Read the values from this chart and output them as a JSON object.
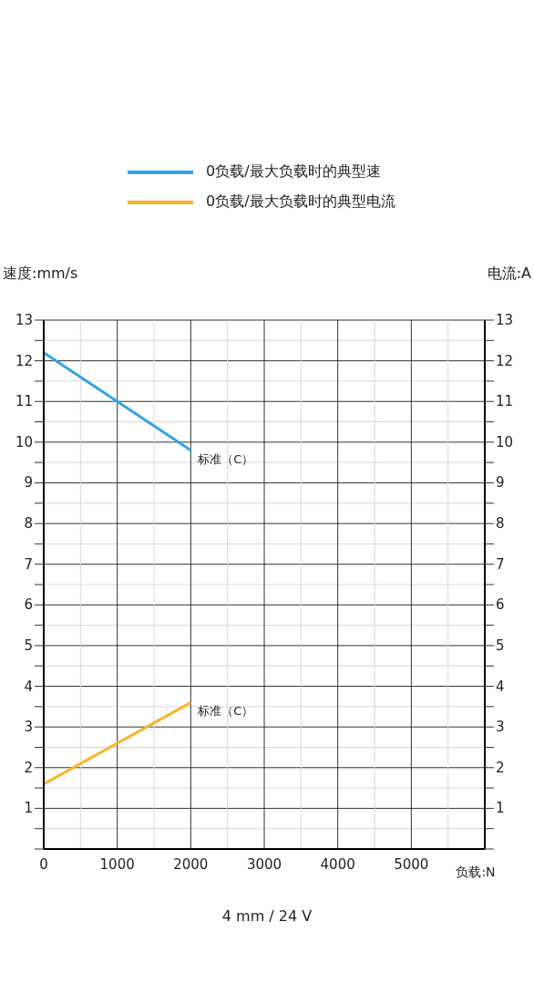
{
  "chart_data": {
    "type": "line",
    "subtitle": "4 mm / 24 V",
    "xlabel": "负载:N",
    "ylabel": "速度:mm/s",
    "y2label": "电流:A",
    "x": [
      0,
      2000
    ],
    "series": [
      {
        "name": "0负载/最大负载时的典型速",
        "color": "#2fa6de",
        "values": [
          12.2,
          9.8
        ]
      },
      {
        "name": "0负载/最大负载时的典型电流",
        "color": "#f8b42c",
        "values": [
          1.6,
          3.6
        ],
        "axis": "y2"
      }
    ],
    "annotations": [
      {
        "text": "标准（C）",
        "x": 2000,
        "y": 9.8
      },
      {
        "text": "标准（C）",
        "x": 2000,
        "y": 3.6
      }
    ],
    "xlim": [
      0,
      6000
    ],
    "xticks": [
      0,
      {
        "value": 500,
        "label": null
      },
      1000,
      {
        "value": 1500,
        "label": null
      },
      2000,
      {
        "value": 2500,
        "label": null
      },
      3000,
      {
        "value": 3500,
        "label": null
      },
      4000,
      {
        "value": 4500,
        "label": null
      },
      5000,
      {
        "value": 5500,
        "label": null
      },
      {
        "value": 6000,
        "label": null
      }
    ],
    "ylim": [
      0,
      13
    ],
    "yticks": [
      {
        "value": 0,
        "label": null
      },
      {
        "value": 0.5,
        "label": null
      },
      1,
      {
        "value": 1.5,
        "label": null
      },
      2,
      {
        "value": 2.5,
        "label": null
      },
      3,
      {
        "value": 3.5,
        "label": null
      },
      4,
      {
        "value": 4.5,
        "label": null
      },
      5,
      {
        "value": 5.5,
        "label": null
      },
      6,
      {
        "value": 6.5,
        "label": null
      },
      7,
      {
        "value": 7.5,
        "label": null
      },
      8,
      {
        "value": 8.5,
        "label": null
      },
      9,
      {
        "value": 9.5,
        "label": null
      },
      10,
      {
        "value": 10.5,
        "label": null
      },
      11,
      {
        "value": 11.5,
        "label": null
      },
      12,
      {
        "value": 12.5,
        "label": null
      },
      13
    ],
    "y2lim": [
      0,
      13
    ],
    "y2ticks": [
      {
        "value": 0,
        "label": null
      },
      {
        "value": 0.5,
        "label": null
      },
      1,
      {
        "value": 1.5,
        "label": null
      },
      2,
      {
        "value": 2.5,
        "label": null
      },
      3,
      {
        "value": 3.5,
        "label": null
      },
      4,
      {
        "value": 4.5,
        "label": null
      },
      5,
      {
        "value": 5.5,
        "label": null
      },
      6,
      {
        "value": 6.5,
        "label": null
      },
      7,
      {
        "value": 7.5,
        "label": null
      },
      8,
      {
        "value": 8.5,
        "label": null
      },
      9,
      {
        "value": 9.5,
        "label": null
      },
      10,
      {
        "value": 10.5,
        "label": null
      },
      11,
      {
        "value": 11.5,
        "label": null
      },
      12,
      {
        "value": 12.5,
        "label": null
      },
      13
    ],
    "grid": true,
    "legend": "top",
    "marker": "none",
    "line_style": "solid"
  }
}
